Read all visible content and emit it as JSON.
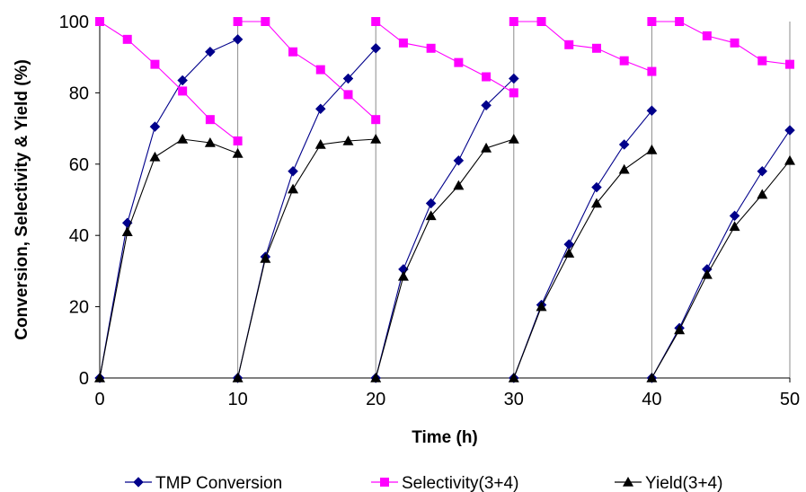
{
  "chart_data": {
    "type": "line",
    "title": "",
    "xlabel": "Time (h)",
    "ylabel": "Conversion, Selectivity & Yield (%)",
    "xlim": [
      0,
      50
    ],
    "ylim": [
      0,
      100
    ],
    "xticks": [
      "0",
      "10",
      "20",
      "30",
      "40",
      "50"
    ],
    "yticks": [
      "0",
      "20",
      "40",
      "60",
      "80",
      "100"
    ],
    "grid": "vertical",
    "legend": "bottom",
    "series": [
      {
        "name": "TMP Conversion",
        "color": "#00008B",
        "marker": "diamond",
        "segments": [
          [
            [
              0,
              0
            ],
            [
              2,
              43.5
            ],
            [
              4,
              70.5
            ],
            [
              6,
              83.5
            ],
            [
              8,
              91.5
            ],
            [
              10,
              95
            ]
          ],
          [
            [
              10,
              0
            ],
            [
              12,
              34
            ],
            [
              14,
              58
            ],
            [
              16,
              75.5
            ],
            [
              18,
              84
            ],
            [
              20,
              92.5
            ]
          ],
          [
            [
              20,
              0
            ],
            [
              22,
              30.5
            ],
            [
              24,
              49
            ],
            [
              26,
              61
            ],
            [
              28,
              76.5
            ],
            [
              30,
              84
            ]
          ],
          [
            [
              30,
              0
            ],
            [
              32,
              20.5
            ],
            [
              34,
              37.5
            ],
            [
              36,
              53.5
            ],
            [
              38,
              65.5
            ],
            [
              40,
              75
            ]
          ],
          [
            [
              40,
              0
            ],
            [
              42,
              14
            ],
            [
              44,
              30.5
            ],
            [
              46,
              45.5
            ],
            [
              48,
              58
            ],
            [
              50,
              69.5
            ]
          ]
        ]
      },
      {
        "name": "Selectivity(3+4)",
        "color": "#FF00FF",
        "marker": "square",
        "segments": [
          [
            [
              0,
              100
            ],
            [
              2,
              95
            ],
            [
              4,
              88
            ],
            [
              6,
              80.5
            ],
            [
              8,
              72.5
            ],
            [
              10,
              66.5
            ]
          ],
          [
            [
              10,
              100
            ],
            [
              12,
              100
            ],
            [
              14,
              91.5
            ],
            [
              16,
              86.5
            ],
            [
              18,
              79.5
            ],
            [
              20,
              72.5
            ]
          ],
          [
            [
              20,
              100
            ],
            [
              22,
              94
            ],
            [
              24,
              92.5
            ],
            [
              26,
              88.5
            ],
            [
              28,
              84.5
            ],
            [
              30,
              80
            ]
          ],
          [
            [
              30,
              100
            ],
            [
              32,
              100
            ],
            [
              34,
              93.5
            ],
            [
              36,
              92.5
            ],
            [
              38,
              89
            ],
            [
              40,
              86
            ]
          ],
          [
            [
              40,
              100
            ],
            [
              42,
              100
            ],
            [
              44,
              96
            ],
            [
              46,
              94
            ],
            [
              48,
              89
            ],
            [
              50,
              88
            ]
          ]
        ]
      },
      {
        "name": "Yield(3+4)",
        "color": "#000000",
        "marker": "triangle",
        "segments": [
          [
            [
              0,
              0
            ],
            [
              2,
              41
            ],
            [
              4,
              62
            ],
            [
              6,
              67
            ],
            [
              8,
              66
            ],
            [
              10,
              63
            ]
          ],
          [
            [
              10,
              0
            ],
            [
              12,
              33.5
            ],
            [
              14,
              53
            ],
            [
              16,
              65.5
            ],
            [
              18,
              66.5
            ],
            [
              20,
              67
            ]
          ],
          [
            [
              20,
              0
            ],
            [
              22,
              28.5
            ],
            [
              24,
              45.5
            ],
            [
              26,
              54
            ],
            [
              28,
              64.5
            ],
            [
              30,
              67
            ]
          ],
          [
            [
              30,
              0
            ],
            [
              32,
              20
            ],
            [
              34,
              35
            ],
            [
              36,
              49
            ],
            [
              38,
              58.5
            ],
            [
              40,
              64
            ]
          ],
          [
            [
              40,
              0
            ],
            [
              42,
              13.5
            ],
            [
              44,
              29
            ],
            [
              46,
              42.5
            ],
            [
              48,
              51.5
            ],
            [
              50,
              61
            ]
          ]
        ]
      }
    ]
  }
}
